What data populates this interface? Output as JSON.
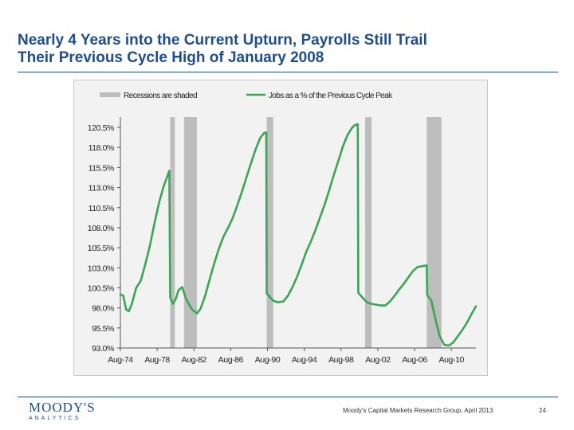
{
  "slide": {
    "title_line1": "Nearly 4 Years into the Current Upturn, Payrolls Still Trail",
    "title_line2": "Their Previous Cycle High of January 2008",
    "source": "Moody's Capital Markets Research Group, April 2013",
    "page_number": "24",
    "logo_text": "MOODY'S",
    "logo_subtext": "ANALYTICS",
    "accent_color": "#1f4e8c"
  },
  "chart_data": {
    "type": "line",
    "legend": [
      {
        "label": "Recessions are shaded",
        "kind": "shade",
        "color": "#bdbdbd"
      },
      {
        "label": "Jobs as a % of the Previous Cycle Peak",
        "kind": "line",
        "color": "#3aa655"
      }
    ],
    "legend_placement": "top",
    "ylim": [
      93.0,
      121.0
    ],
    "yticks": [
      93.0,
      95.5,
      98.0,
      100.5,
      103.0,
      105.5,
      108.0,
      110.5,
      113.0,
      115.5,
      118.0,
      120.5
    ],
    "ytick_labels": [
      "93.0%",
      "95.5%",
      "98.0%",
      "100.5%",
      "103.0%",
      "105.5%",
      "108.0%",
      "110.5%",
      "113.0%",
      "115.5%",
      "118.0%",
      "120.5%"
    ],
    "xlim": [
      1974.58,
      2013.25
    ],
    "xticks": [
      1974.58,
      1978.58,
      1982.58,
      1986.58,
      1990.58,
      1994.58,
      1998.58,
      2002.58,
      2006.58,
      2010.58
    ],
    "xtick_labels": [
      "Aug-74",
      "Aug-78",
      "Aug-82",
      "Aug-86",
      "Aug-90",
      "Aug-94",
      "Aug-98",
      "Aug-02",
      "Aug-06",
      "Aug-10"
    ],
    "grid": false,
    "recessions": [
      [
        1980.0,
        1980.5
      ],
      [
        1981.5,
        1982.9
      ],
      [
        1990.5,
        1991.2
      ],
      [
        2001.2,
        2001.9
      ],
      [
        2007.9,
        2009.5
      ]
    ],
    "series": [
      {
        "name": "Jobs as a % of the Previous Cycle Peak",
        "color": "#3aa655",
        "points": [
          [
            1974.58,
            99.7
          ],
          [
            1974.9,
            99.5
          ],
          [
            1975.2,
            97.8
          ],
          [
            1975.5,
            97.6
          ],
          [
            1975.8,
            98.4
          ],
          [
            1976.3,
            100.5
          ],
          [
            1976.8,
            101.4
          ],
          [
            1977.3,
            103.5
          ],
          [
            1977.8,
            105.8
          ],
          [
            1978.3,
            108.6
          ],
          [
            1978.8,
            111.2
          ],
          [
            1979.3,
            113.2
          ],
          [
            1979.9,
            115.1
          ],
          [
            1980.0,
            99.3
          ],
          [
            1980.3,
            98.5
          ],
          [
            1980.6,
            99.1
          ],
          [
            1980.9,
            100.2
          ],
          [
            1981.3,
            100.6
          ],
          [
            1981.7,
            99.2
          ],
          [
            1982.3,
            97.9
          ],
          [
            1982.9,
            97.3
          ],
          [
            1983.3,
            97.9
          ],
          [
            1983.8,
            99.5
          ],
          [
            1984.3,
            101.6
          ],
          [
            1984.8,
            103.6
          ],
          [
            1985.3,
            105.4
          ],
          [
            1985.8,
            106.9
          ],
          [
            1986.3,
            108.0
          ],
          [
            1986.8,
            109.2
          ],
          [
            1987.3,
            110.8
          ],
          [
            1987.8,
            112.5
          ],
          [
            1988.3,
            114.3
          ],
          [
            1988.8,
            116.1
          ],
          [
            1989.3,
            117.8
          ],
          [
            1989.8,
            119.2
          ],
          [
            1990.2,
            119.8
          ],
          [
            1990.45,
            119.9
          ],
          [
            1990.5,
            99.8
          ],
          [
            1990.8,
            99.4
          ],
          [
            1991.2,
            98.9
          ],
          [
            1991.7,
            98.7
          ],
          [
            1992.3,
            98.8
          ],
          [
            1992.8,
            99.5
          ],
          [
            1993.3,
            100.6
          ],
          [
            1993.8,
            101.9
          ],
          [
            1994.3,
            103.4
          ],
          [
            1994.8,
            105.0
          ],
          [
            1995.3,
            106.3
          ],
          [
            1995.8,
            107.7
          ],
          [
            1996.3,
            109.3
          ],
          [
            1996.8,
            110.9
          ],
          [
            1997.3,
            112.7
          ],
          [
            1997.8,
            114.6
          ],
          [
            1998.3,
            116.4
          ],
          [
            1998.8,
            118.2
          ],
          [
            1999.3,
            119.6
          ],
          [
            1999.8,
            120.5
          ],
          [
            2000.1,
            120.8
          ],
          [
            2000.4,
            120.9
          ],
          [
            2000.45,
            99.9
          ],
          [
            2000.9,
            99.3
          ],
          [
            2001.4,
            98.7
          ],
          [
            2001.9,
            98.5
          ],
          [
            2002.4,
            98.4
          ],
          [
            2002.9,
            98.3
          ],
          [
            2003.4,
            98.3
          ],
          [
            2003.9,
            98.8
          ],
          [
            2004.4,
            99.5
          ],
          [
            2004.9,
            100.3
          ],
          [
            2005.4,
            101.0
          ],
          [
            2005.9,
            101.8
          ],
          [
            2006.4,
            102.6
          ],
          [
            2006.9,
            103.1
          ],
          [
            2007.4,
            103.2
          ],
          [
            2007.9,
            103.3
          ],
          [
            2007.95,
            99.6
          ],
          [
            2008.4,
            98.9
          ],
          [
            2008.8,
            96.8
          ],
          [
            2009.3,
            94.5
          ],
          [
            2009.8,
            93.4
          ],
          [
            2010.3,
            93.3
          ],
          [
            2010.8,
            93.7
          ],
          [
            2011.3,
            94.5
          ],
          [
            2011.8,
            95.3
          ],
          [
            2012.3,
            96.2
          ],
          [
            2012.8,
            97.3
          ],
          [
            2013.25,
            98.2
          ]
        ]
      }
    ]
  }
}
